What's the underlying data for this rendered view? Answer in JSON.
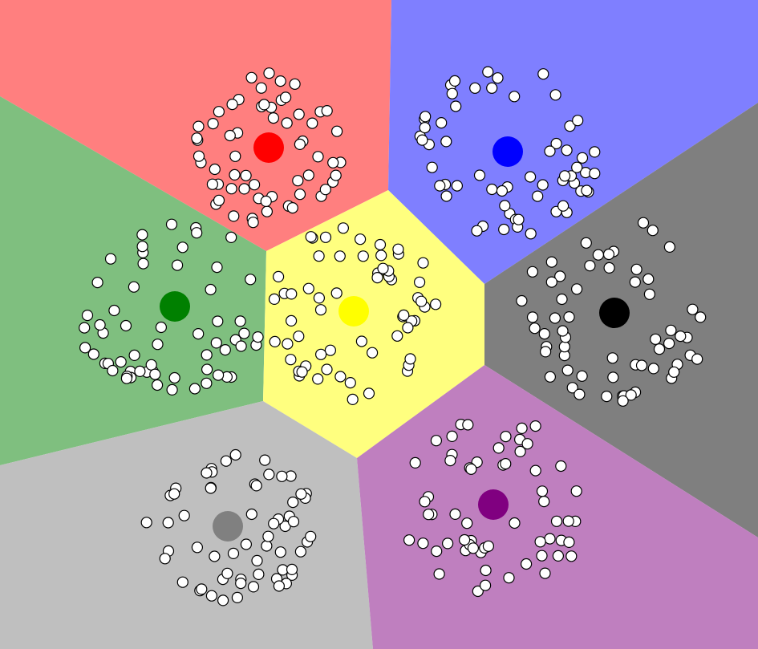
{
  "clusters": [
    {
      "name": "red",
      "centroid_color": "#ff0000",
      "region_color": "#ff7f7f",
      "samples": 60
    },
    {
      "name": "blue",
      "centroid_color": "#0000ff",
      "region_color": "#7f7fff",
      "samples": 60
    },
    {
      "name": "green",
      "centroid_color": "#008000",
      "region_color": "#7fbf7f",
      "samples": 60
    },
    {
      "name": "yellow",
      "centroid_color": "#ffff00",
      "region_color": "#ffff7f",
      "samples": 60
    },
    {
      "name": "black",
      "centroid_color": "#000000",
      "region_color": "#7f7f7f",
      "samples": 60
    },
    {
      "name": "gray",
      "centroid_color": "#808080",
      "region_color": "#bfbfbf",
      "samples": 60
    },
    {
      "name": "purple",
      "centroid_color": "#800080",
      "region_color": "#bf7fbf",
      "samples": 60
    }
  ],
  "sample_style": {
    "fill": "#ffffff",
    "stroke": "#000000"
  }
}
